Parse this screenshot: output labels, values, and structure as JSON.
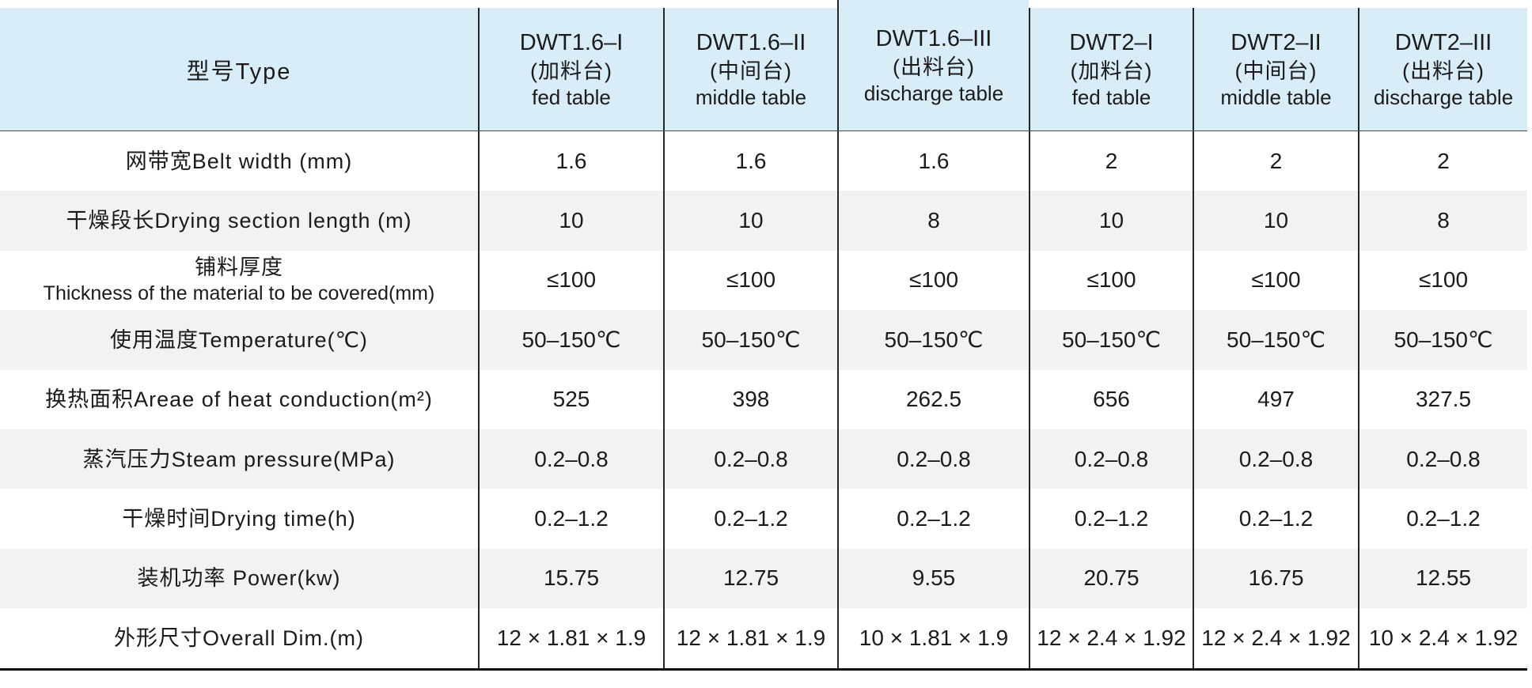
{
  "theme": {
    "header_bg": "#d9edf9",
    "row_alt_bg": "#f2f2f2",
    "row_bg": "#ffffff",
    "line_color": "#262626",
    "text_color": "#1b1b1b"
  },
  "chart_data": {
    "type": "table",
    "corner_label": "型号Type",
    "columns": [
      {
        "model": "DWT1.6–I",
        "name_cn": "(加料台)",
        "name_en": "fed table"
      },
      {
        "model": "DWT1.6–II",
        "name_cn": "(中间台)",
        "name_en": "middle table"
      },
      {
        "model": "DWT1.6–III",
        "name_cn": "(出料台)",
        "name_en": "discharge table"
      },
      {
        "model": "DWT2–I",
        "name_cn": "(加料台)",
        "name_en": "fed table"
      },
      {
        "model": "DWT2–II",
        "name_cn": "(中间台)",
        "name_en": "middle table"
      },
      {
        "model": "DWT2–III",
        "name_cn": "(出料台)",
        "name_en": "discharge table"
      }
    ],
    "rows": [
      {
        "label": "网带宽Belt width (mm)",
        "values": [
          "1.6",
          "1.6",
          "1.6",
          "2",
          "2",
          "2"
        ]
      },
      {
        "label": "干燥段长Drying section length (m)",
        "values": [
          "10",
          "10",
          "8",
          "10",
          "10",
          "8"
        ]
      },
      {
        "label": "铺料厚度",
        "label2": "Thickness of the material to be covered(mm)",
        "values": [
          "≤100",
          "≤100",
          "≤100",
          "≤100",
          "≤100",
          "≤100"
        ]
      },
      {
        "label": "使用温度Temperature(℃)",
        "values": [
          "50–150℃",
          "50–150℃",
          "50–150℃",
          "50–150℃",
          "50–150℃",
          "50–150℃"
        ]
      },
      {
        "label": "换热面积Areae of heat conduction(m²)",
        "values": [
          "525",
          "398",
          "262.5",
          "656",
          "497",
          "327.5"
        ]
      },
      {
        "label": "蒸汽压力Steam pressure(MPa)",
        "values": [
          "0.2–0.8",
          "0.2–0.8",
          "0.2–0.8",
          "0.2–0.8",
          "0.2–0.8",
          "0.2–0.8"
        ]
      },
      {
        "label": "干燥时间Drying time(h)",
        "values": [
          "0.2–1.2",
          "0.2–1.2",
          "0.2–1.2",
          "0.2–1.2",
          "0.2–1.2",
          "0.2–1.2"
        ]
      },
      {
        "label": "装机功率 Power(kw)",
        "values": [
          "15.75",
          "12.75",
          "9.55",
          "20.75",
          "16.75",
          "12.55"
        ]
      },
      {
        "label": "外形尺寸Overall Dim.(m)",
        "values": [
          "12 × 1.81 × 1.9",
          "12 × 1.81 × 1.9",
          "10 × 1.81 × 1.9",
          "12 × 2.4 × 1.92",
          "12 × 2.4 × 1.92",
          "10 × 2.4 × 1.92"
        ]
      }
    ]
  }
}
